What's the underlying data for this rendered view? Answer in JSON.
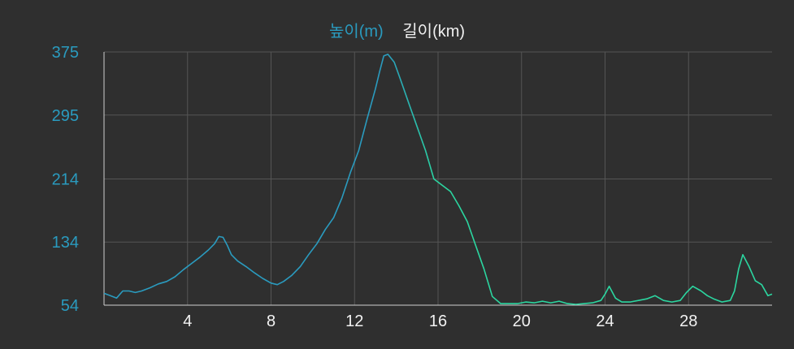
{
  "legend": {
    "elevation_label": "높이(m)",
    "distance_label": "길이(km)"
  },
  "colors": {
    "background": "#2f2f2f",
    "grid": "#555555",
    "y_tick": "#2a9bbf",
    "x_tick": "#f2f2f2",
    "line_start": "#2a9bbf",
    "line_end": "#2bd6a0"
  },
  "chart_data": {
    "type": "line",
    "title": "",
    "xlabel": "",
    "ylabel": "",
    "legend": [
      "높이(m)",
      "길이(km)"
    ],
    "legend_position": "top-center",
    "grid": true,
    "xlim": [
      0,
      32
    ],
    "ylim": [
      54,
      375
    ],
    "x_ticks": [
      4,
      8,
      12,
      16,
      20,
      24,
      28
    ],
    "y_ticks": [
      54,
      134,
      214,
      295,
      375
    ],
    "series": [
      {
        "name": "높이(m)",
        "x": [
          0,
          0.3,
          0.6,
          0.9,
          1.2,
          1.5,
          1.8,
          2.2,
          2.6,
          3.0,
          3.4,
          3.8,
          4.2,
          4.6,
          5.0,
          5.3,
          5.5,
          5.7,
          5.9,
          6.1,
          6.4,
          6.8,
          7.2,
          7.6,
          8.0,
          8.3,
          8.6,
          9.0,
          9.4,
          9.8,
          10.2,
          10.6,
          11.0,
          11.4,
          11.8,
          12.2,
          12.6,
          13.0,
          13.2,
          13.4,
          13.6,
          13.9,
          14.2,
          14.6,
          15.0,
          15.4,
          15.8,
          16.2,
          16.6,
          17.0,
          17.4,
          17.8,
          18.2,
          18.6,
          19.0,
          19.4,
          19.8,
          20.2,
          20.6,
          21.0,
          21.4,
          21.8,
          22.2,
          22.6,
          23.0,
          23.4,
          23.8,
          24.0,
          24.2,
          24.5,
          24.8,
          25.2,
          25.6,
          26.0,
          26.4,
          26.8,
          27.2,
          27.6,
          27.9,
          28.2,
          28.6,
          28.9,
          29.2,
          29.6,
          30.0,
          30.2,
          30.4,
          30.6,
          30.9,
          31.2,
          31.5,
          31.8,
          32.0
        ],
        "y": [
          69,
          66,
          63,
          72,
          72,
          70,
          72,
          76,
          81,
          84,
          90,
          99,
          107,
          115,
          124,
          132,
          141,
          140,
          130,
          118,
          110,
          103,
          95,
          88,
          82,
          80,
          84,
          92,
          103,
          118,
          132,
          150,
          165,
          190,
          222,
          250,
          290,
          328,
          350,
          370,
          372,
          362,
          340,
          310,
          280,
          250,
          214,
          206,
          198,
          180,
          160,
          130,
          100,
          65,
          56,
          56,
          56,
          58,
          57,
          59,
          57,
          59,
          56,
          55,
          56,
          57,
          60,
          68,
          78,
          63,
          58,
          58,
          60,
          62,
          66,
          60,
          58,
          60,
          70,
          78,
          72,
          66,
          62,
          58,
          60,
          72,
          100,
          118,
          103,
          85,
          80,
          66,
          68
        ]
      }
    ]
  }
}
